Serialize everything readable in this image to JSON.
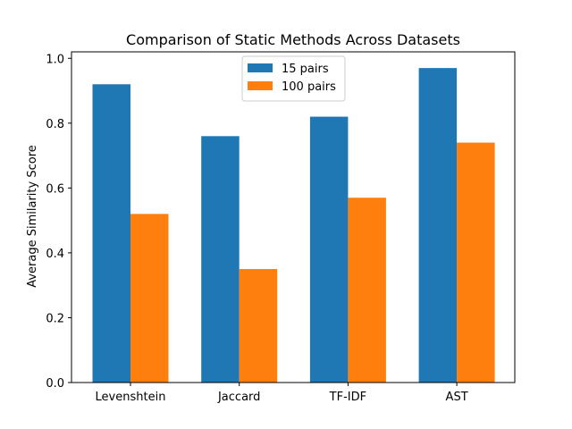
{
  "chart_data": {
    "type": "bar",
    "title": "Comparison of Static Methods Across Datasets",
    "xlabel": "",
    "ylabel": "Average Similarity Score",
    "categories": [
      "Levenshtein",
      "Jaccard",
      "TF-IDF",
      "AST"
    ],
    "series": [
      {
        "name": "15 pairs",
        "color": "#1f77b4",
        "values": [
          0.92,
          0.76,
          0.82,
          0.97
        ]
      },
      {
        "name": "100 pairs",
        "color": "#ff7f0e",
        "values": [
          0.52,
          0.35,
          0.57,
          0.74
        ]
      }
    ],
    "ylim": [
      0,
      1.02
    ],
    "yticks": [
      "0.0",
      "0.2",
      "0.4",
      "0.6",
      "0.8",
      "1.0"
    ],
    "grid": false,
    "legend_position": "top-center"
  }
}
